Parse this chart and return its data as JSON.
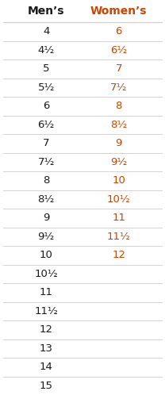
{
  "headers": [
    "Men’s",
    "Women’s"
  ],
  "header_color_mens": "#1a1a1a",
  "header_color_womens": "#cc4400",
  "mens_color": "#1a1a1a",
  "womens_color": "#cc4400",
  "mens_sizes": [
    "4",
    "4½",
    "5",
    "5½",
    "6",
    "6½",
    "7",
    "7½",
    "8",
    "8½",
    "9",
    "9½",
    "10",
    "10½",
    "11",
    "11½",
    "12",
    "13",
    "14",
    "15"
  ],
  "womens_sizes": [
    "6",
    "6½",
    "7",
    "7½",
    "8",
    "8½",
    "9",
    "9½",
    "10",
    "10½",
    "11",
    "11½",
    "12",
    "",
    "",
    "",
    "",
    "",
    "",
    ""
  ],
  "background_color": "#ffffff",
  "line_color": "#cccccc",
  "font_size": 9.5,
  "header_font_size": 10
}
